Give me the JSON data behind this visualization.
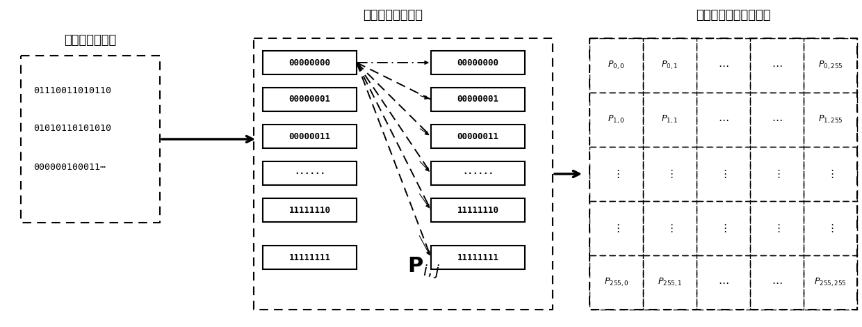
{
  "title_center": "计算字节转移概率",
  "title_right": "马尔科夫图像像素矩阵",
  "title_left": "二进制恶意软件",
  "binary_lines": [
    "01110011010110",
    "01010110101010",
    "000000100011⋯"
  ],
  "left_boxes": [
    "00000000",
    "00000001",
    "00000011",
    "······",
    "11111110",
    "11111111"
  ],
  "right_boxes": [
    "00000000",
    "00000001",
    "00000011",
    "······",
    "11111110",
    "11111111"
  ],
  "matrix_labels_row0": [
    "P_{0,0}",
    "P_{0,1}",
    "\\cdots",
    "\\cdots",
    "P_{0,255}"
  ],
  "matrix_labels_row1": [
    "P_{1,0}",
    "P_{1,1}",
    "\\cdots",
    "\\cdots",
    "P_{1,255}"
  ],
  "matrix_labels_row2": [
    "\\vdots",
    "\\vdots",
    "\\vdots",
    "\\vdots",
    "\\vdots"
  ],
  "matrix_labels_row3": [
    "\\vdots",
    "\\vdots",
    "\\vdots",
    "\\vdots",
    "\\vdots"
  ],
  "matrix_labels_row4": [
    "P_{255,0}",
    "P_{255,1}",
    "\\cdots",
    "\\cdots",
    "P_{255,255}"
  ],
  "bg_color": "#ffffff"
}
